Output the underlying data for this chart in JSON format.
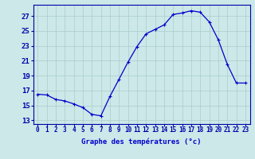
{
  "hours": [
    0,
    1,
    2,
    3,
    4,
    5,
    6,
    7,
    8,
    9,
    10,
    11,
    12,
    13,
    14,
    15,
    16,
    17,
    18,
    19,
    20,
    21,
    22,
    23
  ],
  "temps": [
    16.5,
    16.4,
    15.8,
    15.6,
    15.2,
    14.7,
    13.8,
    13.6,
    16.2,
    18.5,
    20.8,
    22.9,
    24.6,
    25.2,
    25.8,
    27.2,
    27.4,
    27.7,
    27.5,
    26.2,
    23.8,
    20.5,
    18.0,
    18.0
  ],
  "line_color": "#0000cc",
  "marker": "+",
  "bg_color": "#cce8e8",
  "grid_color": "#aacccc",
  "xlabel": "Graphe des températures (°c)",
  "ylabel_ticks": [
    13,
    15,
    17,
    19,
    21,
    23,
    25,
    27
  ],
  "ylim": [
    12.5,
    28.5
  ],
  "xlim": [
    -0.5,
    23.5
  ],
  "axis_color": "#0000aa",
  "label_color": "#0000cc",
  "tick_fontsize": 5.5,
  "xlabel_fontsize": 6.5,
  "linewidth": 0.9,
  "markersize": 3.5,
  "markeredgewidth": 0.8
}
